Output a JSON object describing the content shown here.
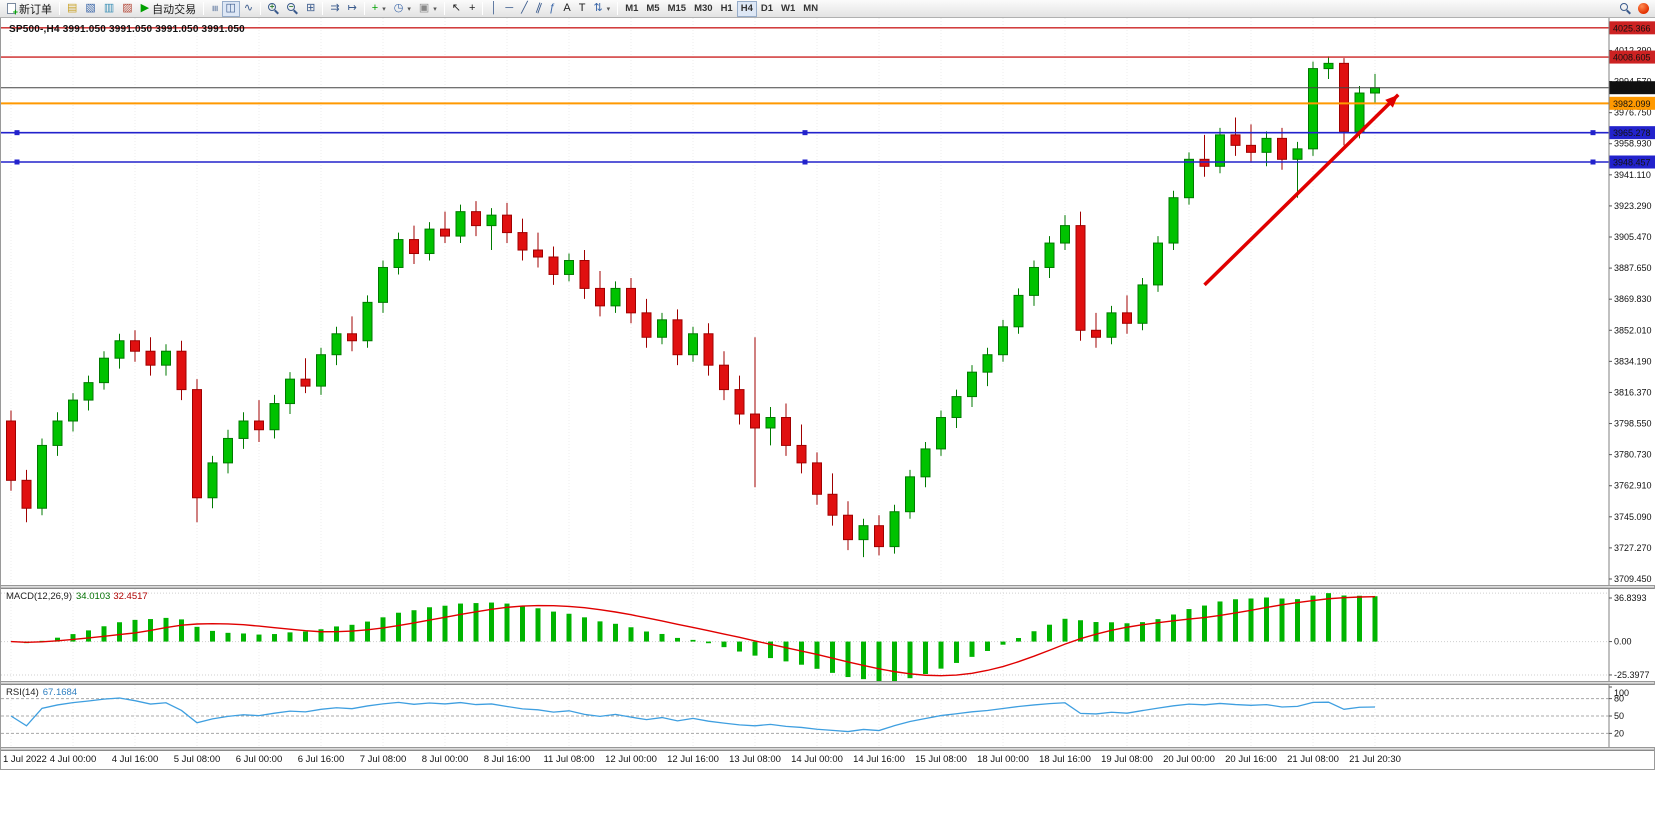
{
  "colors": {
    "up": "#00c200",
    "up_border": "#007a00",
    "down": "#e01010",
    "down_border": "#a00000",
    "macd_hist": "#00b400",
    "macd_signal": "#e00000",
    "rsi": "#3f9fe0",
    "arrow": "#e00000",
    "red_line": "#cc2222",
    "blue_line": "#2222cc",
    "orange_line": "#ff9900"
  },
  "toolbar": {
    "groups": [
      {
        "items": [
          {
            "name": "new-order-button",
            "icon": "doc-new",
            "label": "新订单"
          }
        ]
      },
      {
        "items": [
          {
            "name": "market-watch-button",
            "glyph": "▤",
            "color": "#c9a227"
          },
          {
            "name": "navigator-button",
            "glyph": "▧",
            "color": "#3a66a8"
          },
          {
            "name": "data-window-button",
            "glyph": "▥",
            "color": "#3a8fb5"
          },
          {
            "name": "terminal-button",
            "glyph": "▨",
            "color": "#b54a3a"
          },
          {
            "name": "autotrading-button",
            "glyph": "▶",
            "color": "#00a000",
            "label": "自动交易"
          }
        ]
      },
      {
        "items": [
          {
            "name": "bar-chart-button",
            "glyph": "≡",
            "rot": "rot90",
            "color": "#3a5a8c"
          },
          {
            "name": "candlestick-button",
            "glyph": "◫",
            "color": "#3a5a8c",
            "active": true
          },
          {
            "name": "line-chart-button",
            "glyph": "∿",
            "color": "#3a5a8c"
          }
        ]
      },
      {
        "items": [
          {
            "name": "zoom-in-button",
            "icon": "magnifier",
            "sign": "+"
          },
          {
            "name": "zoom-out-button",
            "icon": "magnifier",
            "sign": "−"
          },
          {
            "name": "grid-button",
            "glyph": "⊞",
            "color": "#3a5a8c"
          }
        ]
      },
      {
        "items": [
          {
            "name": "auto-scroll-button",
            "glyph": "⇉",
            "color": "#3a5a8c"
          },
          {
            "name": "chart-shift-button",
            "glyph": "↦",
            "color": "#3a5a8c"
          }
        ]
      },
      {
        "items": [
          {
            "name": "indicators-button",
            "glyph": "+",
            "color": "#00a000",
            "caret": true
          },
          {
            "name": "periods-button",
            "glyph": "◷",
            "color": "#3a66a8",
            "caret": true
          },
          {
            "name": "templates-button",
            "glyph": "▣",
            "color": "#888888",
            "caret": true
          }
        ]
      },
      {
        "items": [
          {
            "name": "cursor-button",
            "glyph": "↖",
            "color": "#222222"
          },
          {
            "name": "crosshair-button",
            "glyph": "+",
            "color": "#222222"
          }
        ]
      },
      {
        "items": [
          {
            "name": "vertical-line-button",
            "glyph": "│",
            "color": "#3a5a8c"
          },
          {
            "name": "horizontal-line-button",
            "glyph": "─",
            "color": "#3a5a8c"
          },
          {
            "name": "trendline-button",
            "glyph": "╱",
            "color": "#3a5a8c"
          },
          {
            "name": "channel-button",
            "glyph": "∥",
            "rot": "rot20",
            "color": "#3a5a8c"
          },
          {
            "name": "fibonacci-button",
            "glyph": "ƒ",
            "color": "#3a66a8"
          },
          {
            "name": "text-button",
            "glyph": "A",
            "color": "#222222"
          },
          {
            "name": "label-button",
            "glyph": "T",
            "color": "#222222"
          },
          {
            "name": "arrows-button",
            "glyph": "⇅",
            "color": "#3a66a8",
            "caret": true
          }
        ]
      },
      {
        "items": [
          {
            "name": "tf-m1-button",
            "label": "M1",
            "tf": true
          },
          {
            "name": "tf-m5-button",
            "label": "M5",
            "tf": true
          },
          {
            "name": "tf-m15-button",
            "label": "M15",
            "tf": true
          },
          {
            "name": "tf-m30-button",
            "label": "M30",
            "tf": true
          },
          {
            "name": "tf-h1-button",
            "label": "H1",
            "tf": true
          },
          {
            "name": "tf-h4-button",
            "label": "H4",
            "tf": true,
            "active": true
          },
          {
            "name": "tf-d1-button",
            "label": "D1",
            "tf": true
          },
          {
            "name": "tf-w1-button",
            "label": "W1",
            "tf": true
          },
          {
            "name": "tf-mn-button",
            "label": "MN",
            "tf": true
          }
        ]
      }
    ],
    "right": [
      {
        "name": "search-button",
        "icon": "magnifier",
        "sign": ""
      },
      {
        "name": "notification-badge",
        "kind": "badge"
      }
    ]
  },
  "chart": {
    "title": "SP500-,H4  3991.050 3991.050 3991.050 3991.050",
    "symbol": "SP500-",
    "period": "H4"
  },
  "chart_data": {
    "type": "candlestick",
    "symbol": "SP500-",
    "timeframe": "H4",
    "price_range": [
      3706,
      4031
    ],
    "candles": [
      [
        3800,
        3806,
        3760,
        3766
      ],
      [
        3766,
        3772,
        3742,
        3750
      ],
      [
        3750,
        3790,
        3746,
        3786
      ],
      [
        3786,
        3805,
        3780,
        3800
      ],
      [
        3800,
        3816,
        3794,
        3812
      ],
      [
        3812,
        3826,
        3806,
        3822
      ],
      [
        3822,
        3840,
        3818,
        3836
      ],
      [
        3836,
        3850,
        3830,
        3846
      ],
      [
        3846,
        3852,
        3834,
        3840
      ],
      [
        3840,
        3848,
        3826,
        3832
      ],
      [
        3832,
        3844,
        3826,
        3840
      ],
      [
        3840,
        3846,
        3812,
        3818
      ],
      [
        3818,
        3824,
        3742,
        3756
      ],
      [
        3756,
        3780,
        3750,
        3776
      ],
      [
        3776,
        3795,
        3770,
        3790
      ],
      [
        3790,
        3805,
        3784,
        3800
      ],
      [
        3800,
        3812,
        3788,
        3795
      ],
      [
        3795,
        3815,
        3790,
        3810
      ],
      [
        3810,
        3828,
        3804,
        3824
      ],
      [
        3824,
        3836,
        3816,
        3820
      ],
      [
        3820,
        3842,
        3815,
        3838
      ],
      [
        3838,
        3854,
        3832,
        3850
      ],
      [
        3850,
        3860,
        3840,
        3846
      ],
      [
        3846,
        3872,
        3842,
        3868
      ],
      [
        3868,
        3892,
        3862,
        3888
      ],
      [
        3888,
        3908,
        3884,
        3904
      ],
      [
        3904,
        3912,
        3890,
        3896
      ],
      [
        3896,
        3914,
        3892,
        3910
      ],
      [
        3910,
        3920,
        3902,
        3906
      ],
      [
        3906,
        3924,
        3902,
        3920
      ],
      [
        3920,
        3926,
        3906,
        3912
      ],
      [
        3912,
        3922,
        3898,
        3918
      ],
      [
        3918,
        3925,
        3902,
        3908
      ],
      [
        3908,
        3916,
        3892,
        3898
      ],
      [
        3898,
        3908,
        3888,
        3894
      ],
      [
        3894,
        3900,
        3878,
        3884
      ],
      [
        3884,
        3896,
        3880,
        3892
      ],
      [
        3892,
        3898,
        3870,
        3876
      ],
      [
        3876,
        3886,
        3860,
        3866
      ],
      [
        3866,
        3880,
        3862,
        3876
      ],
      [
        3876,
        3882,
        3856,
        3862
      ],
      [
        3862,
        3870,
        3842,
        3848
      ],
      [
        3848,
        3862,
        3844,
        3858
      ],
      [
        3858,
        3864,
        3832,
        3838
      ],
      [
        3838,
        3854,
        3834,
        3850
      ],
      [
        3850,
        3856,
        3826,
        3832
      ],
      [
        3832,
        3840,
        3812,
        3818
      ],
      [
        3818,
        3826,
        3798,
        3804
      ],
      [
        3804,
        3848,
        3762,
        3796
      ],
      [
        3796,
        3808,
        3786,
        3802
      ],
      [
        3802,
        3810,
        3780,
        3786
      ],
      [
        3786,
        3798,
        3770,
        3776
      ],
      [
        3776,
        3782,
        3752,
        3758
      ],
      [
        3758,
        3770,
        3740,
        3746
      ],
      [
        3746,
        3754,
        3726,
        3732
      ],
      [
        3732,
        3744,
        3722,
        3740
      ],
      [
        3740,
        3746,
        3723,
        3728
      ],
      [
        3728,
        3752,
        3724,
        3748
      ],
      [
        3748,
        3772,
        3744,
        3768
      ],
      [
        3768,
        3788,
        3762,
        3784
      ],
      [
        3784,
        3806,
        3780,
        3802
      ],
      [
        3802,
        3818,
        3796,
        3814
      ],
      [
        3814,
        3832,
        3808,
        3828
      ],
      [
        3828,
        3842,
        3820,
        3838
      ],
      [
        3838,
        3858,
        3834,
        3854
      ],
      [
        3854,
        3876,
        3850,
        3872
      ],
      [
        3872,
        3892,
        3866,
        3888
      ],
      [
        3888,
        3906,
        3882,
        3902
      ],
      [
        3902,
        3918,
        3898,
        3912
      ],
      [
        3912,
        3920,
        3846,
        3852
      ],
      [
        3852,
        3862,
        3842,
        3848
      ],
      [
        3848,
        3866,
        3844,
        3862
      ],
      [
        3862,
        3872,
        3850,
        3856
      ],
      [
        3856,
        3882,
        3852,
        3878
      ],
      [
        3878,
        3906,
        3874,
        3902
      ],
      [
        3902,
        3932,
        3898,
        3928
      ],
      [
        3928,
        3954,
        3924,
        3950
      ],
      [
        3950,
        3964,
        3940,
        3946
      ],
      [
        3946,
        3968,
        3942,
        3964
      ],
      [
        3964,
        3974,
        3952,
        3958
      ],
      [
        3958,
        3970,
        3948,
        3954
      ],
      [
        3954,
        3966,
        3946,
        3962
      ],
      [
        3962,
        3968,
        3944,
        3950
      ],
      [
        3950,
        3960,
        3928,
        3956
      ],
      [
        3956,
        4006,
        3952,
        4002
      ],
      [
        4002,
        4009,
        3996,
        4005
      ],
      [
        4005,
        4008,
        3958,
        3966
      ],
      [
        3966,
        3992,
        3962,
        3988
      ],
      [
        3988,
        3999,
        3982,
        3991.05
      ]
    ],
    "time_labels": [
      "1 Jul 2022",
      "4 Jul 00:00",
      "4 Jul 16:00",
      "5 Jul 08:00",
      "6 Jul 00:00",
      "6 Jul 16:00",
      "7 Jul 08:00",
      "8 Jul 00:00",
      "8 Jul 16:00",
      "11 Jul 08:00",
      "12 Jul 00:00",
      "12 Jul 16:00",
      "13 Jul 08:00",
      "14 Jul 00:00",
      "14 Jul 16:00",
      "15 Jul 08:00",
      "18 Jul 00:00",
      "18 Jul 16:00",
      "19 Jul 08:00",
      "20 Jul 00:00",
      "20 Jul 16:00",
      "21 Jul 08:00",
      "21 Jul 20:30"
    ],
    "price_axis_labels": [
      "4012.390",
      "3994.570",
      "3976.750",
      "3958.930",
      "3941.110",
      "3923.290",
      "3905.470",
      "3887.650",
      "3869.830",
      "3852.010",
      "3834.190",
      "3816.370",
      "3798.550",
      "3780.730",
      "3762.910",
      "3745.090",
      "3727.270",
      "3709.450"
    ],
    "price_tags": [
      {
        "text": "4025.366",
        "price": 4025.366,
        "bg": "#cc2222",
        "fg": "#ffffff"
      },
      {
        "text": "4008.605",
        "price": 4008.605,
        "bg": "#cc2222",
        "fg": "#ffffff"
      },
      {
        "text": "3991.050",
        "price": 3991.05,
        "bg": "#111111",
        "fg": "#ffffff"
      },
      {
        "text": "3982.099",
        "price": 3982.099,
        "bg": "#ff9900",
        "fg": "#ffffff"
      },
      {
        "text": "3965.278",
        "price": 3965.278,
        "bg": "#2222cc",
        "fg": "#ffffff"
      },
      {
        "text": "3948.457",
        "price": 3948.457,
        "bg": "#2222cc",
        "fg": "#ffffff"
      }
    ],
    "hlines": [
      {
        "name": "resistance-line-upper",
        "price": 4025.366,
        "color": "#cc2222",
        "width": 1.4
      },
      {
        "name": "resistance-line-lower",
        "price": 4008.605,
        "color": "#cc2222",
        "width": 1.4
      },
      {
        "name": "bid-price-line",
        "price": 3991.05,
        "color": "#444444",
        "width": 1
      },
      {
        "name": "orange-level-line",
        "price": 3982.099,
        "color": "#ff9900",
        "width": 2
      },
      {
        "name": "blue-support-line-1",
        "price": 3965.278,
        "color": "#2222cc",
        "width": 1.6,
        "handles": true
      },
      {
        "name": "blue-support-line-2",
        "price": 3948.457,
        "color": "#2222cc",
        "width": 1.6,
        "handles": true
      }
    ],
    "trend_arrow": {
      "from": {
        "bar": 77,
        "price": 3878
      },
      "to": {
        "bar": 89.5,
        "price": 3987
      }
    },
    "indicators": {
      "macd": {
        "label": "MACD(12,26,9)",
        "params": [
          12,
          26,
          9
        ],
        "main_value": "34.0103",
        "signal_value": "32.4517",
        "axis": [
          36.8393,
          0,
          -25.3977
        ],
        "axis_labels": [
          "36.8393",
          "0.00",
          "-25.3977"
        ]
      },
      "rsi": {
        "label": "RSI(14)",
        "period": 14,
        "value": "67.1684",
        "levels": [
          80,
          50,
          20
        ],
        "axis_values": [
          100,
          80,
          50,
          20
        ],
        "axis_labels": [
          "100",
          "80",
          "50",
          "20"
        ]
      }
    }
  }
}
